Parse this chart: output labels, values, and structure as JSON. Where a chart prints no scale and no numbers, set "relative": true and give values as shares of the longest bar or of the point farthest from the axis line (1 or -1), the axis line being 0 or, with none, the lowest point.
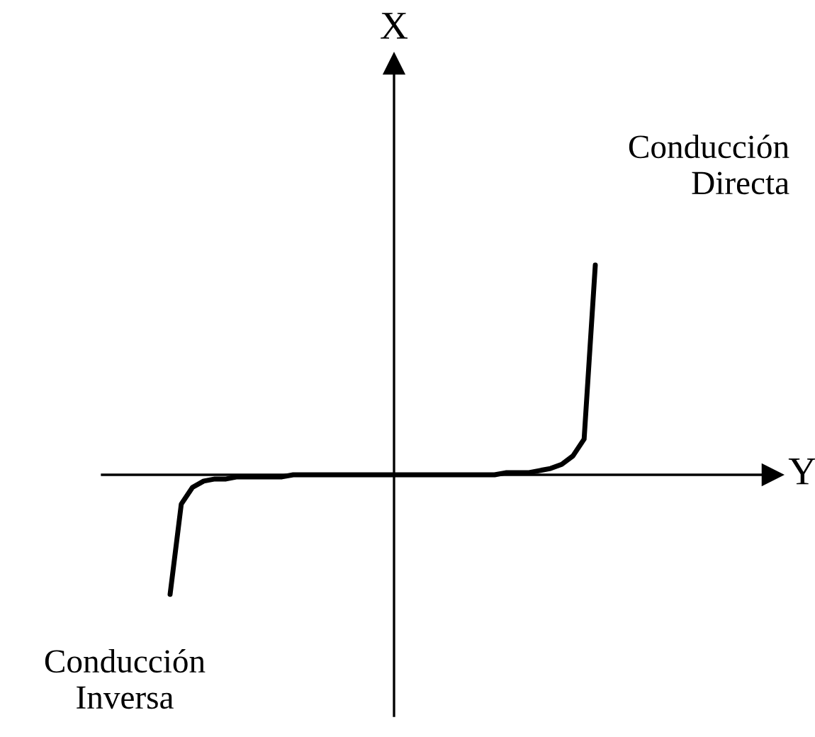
{
  "chart_data": {
    "type": "line",
    "relative": true,
    "xlabel": "Y",
    "grid": false,
    "legend": false,
    "marker": "none",
    "line_style": "solid",
    "categories": [
      null,
      null,
      null,
      null,
      null,
      null,
      null,
      null,
      null,
      null,
      null,
      null,
      null,
      null,
      null,
      null,
      null,
      null,
      null,
      null,
      null,
      null,
      null,
      null,
      null,
      null,
      null,
      null,
      null,
      null,
      null,
      null,
      null,
      null,
      null,
      null,
      null,
      null,
      null
    ],
    "series": [
      {
        "color": "#000000",
        "values": [
          -0.57,
          -0.14,
          -0.06,
          -0.03,
          -0.02,
          -0.02,
          -0.01,
          -0.01,
          -0.01,
          -0.01,
          -0.01,
          0,
          0,
          0,
          0,
          0,
          0,
          0,
          0,
          0,
          0,
          0,
          0,
          0,
          0,
          0,
          0,
          0,
          0,
          0,
          0.01,
          0.01,
          0.01,
          0.02,
          0.03,
          0.05,
          0.09,
          0.17,
          1.0
        ]
      }
    ],
    "annotations": [
      "X",
      "Conducción\nDirecta",
      "Conducción\nInversa"
    ]
  }
}
